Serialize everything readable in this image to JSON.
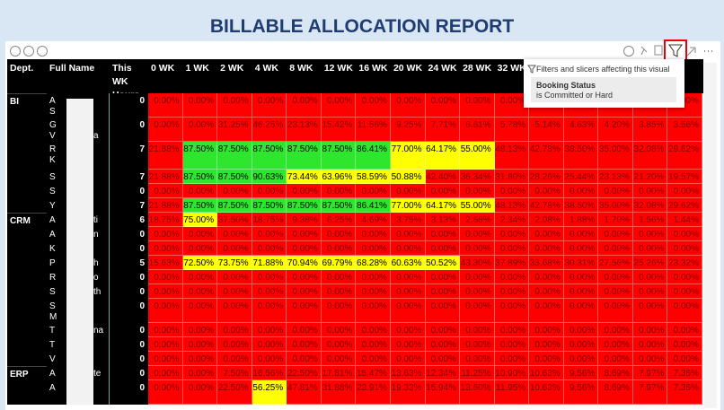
{
  "header": {
    "title": "BILLABLE ALLOCATION REPORT"
  },
  "table": {
    "columns": [
      "Dept.",
      "Full Name",
      "This WK Hours",
      "0 WK",
      "1 WK",
      "2 WK",
      "4 WK",
      "8 WK",
      "12 WK",
      "16 WK",
      "20 WK",
      "24 WK",
      "28 WK",
      "32 WK",
      null,
      null,
      null,
      null,
      null
    ],
    "colors": {
      "low": "#ff0000",
      "mid": "#ffff00",
      "high": "#2ee62e"
    },
    "rows": [
      {
        "dept": "BI",
        "name_lines": [
          "A",
          "S"
        ],
        "name_tail": null,
        "hours": 0,
        "cells": [
          "0.00%",
          "0.00%",
          "0.00%",
          "0.00%",
          "0.00%",
          "0.00%",
          "0.00%",
          "0.00%",
          "0.00%",
          "0.00%",
          "0.00%",
          "0.00%",
          "0.00%",
          "0.00%",
          "0.00%",
          "0.00%"
        ]
      },
      {
        "dept": null,
        "name_lines": [
          "G",
          "V"
        ],
        "name_tail": "a",
        "hours": 0,
        "cells": [
          "0.00%",
          "0.00%",
          "31.25%",
          "46.25%",
          "23.13%",
          "15.42%",
          "11.56%",
          "9.25%",
          "7.71%",
          "6.61%",
          "5.78%",
          "5.14%",
          "4.63%",
          "4.20%",
          "3.85%",
          "3.56%"
        ]
      },
      {
        "dept": null,
        "name_lines": [
          "R",
          "K"
        ],
        "name_tail": null,
        "hours": 7,
        "cells": [
          "21.88%",
          "87.50%",
          "87.50%",
          "87.50%",
          "87.50%",
          "87.50%",
          "86.41%",
          "77.00%",
          "64.17%",
          "55.00%",
          "48.13%",
          "42.78%",
          "38.50%",
          "35.00%",
          "32.08%",
          "29.62%"
        ]
      },
      {
        "dept": null,
        "name_lines": [
          "S"
        ],
        "name_tail": null,
        "hours": 7,
        "cells": [
          "21.88%",
          "87.50%",
          "87.50%",
          "90.63%",
          "73.44%",
          "63.96%",
          "58.59%",
          "50.88%",
          "42.40%",
          "36.34%",
          "31.80%",
          "28.26%",
          "25.44%",
          "23.13%",
          "21.20%",
          "19.57%"
        ]
      },
      {
        "dept": null,
        "name_lines": [
          "S"
        ],
        "name_tail": null,
        "hours": 0,
        "cells": [
          "0.00%",
          "0.00%",
          "0.00%",
          "0.00%",
          "0.00%",
          "0.00%",
          "0.00%",
          "0.00%",
          "0.00%",
          "0.00%",
          "0.00%",
          "0.00%",
          "0.00%",
          "0.00%",
          "0.00%",
          "0.00%"
        ]
      },
      {
        "dept": null,
        "name_lines": [
          "Y"
        ],
        "name_tail": null,
        "hours": 7,
        "cells": [
          "21.88%",
          "87.50%",
          "87.50%",
          "87.50%",
          "87.50%",
          "87.50%",
          "86.41%",
          "77.00%",
          "64.17%",
          "55.00%",
          "48.13%",
          "42.78%",
          "38.50%",
          "35.00%",
          "32.08%",
          "29.62%"
        ]
      },
      {
        "dept": "CRM",
        "name_lines": [
          "A"
        ],
        "name_tail": "ti",
        "hours": 6,
        "cells": [
          "18.75%",
          "75.00%",
          "37.50%",
          "18.75%",
          "9.38%",
          "6.25%",
          "4.69%",
          "3.75%",
          "3.13%",
          "2.68%",
          "2.34%",
          "2.08%",
          "1.88%",
          "1.70%",
          "1.56%",
          "1.44%"
        ]
      },
      {
        "dept": null,
        "name_lines": [
          "A"
        ],
        "name_tail": "n",
        "hours": 0,
        "cells": [
          "0.00%",
          "0.00%",
          "0.00%",
          "0.00%",
          "0.00%",
          "0.00%",
          "0.00%",
          "0.00%",
          "0.00%",
          "0.00%",
          "0.00%",
          "0.00%",
          "0.00%",
          "0.00%",
          "0.00%",
          "0.00%"
        ]
      },
      {
        "dept": null,
        "name_lines": [
          "K"
        ],
        "name_tail": null,
        "hours": 0,
        "cells": [
          "0.00%",
          "0.00%",
          "0.00%",
          "0.00%",
          "0.00%",
          "0.00%",
          "0.00%",
          "0.00%",
          "0.00%",
          "0.00%",
          "0.00%",
          "0.00%",
          "0.00%",
          "0.00%",
          "0.00%",
          "0.00%"
        ]
      },
      {
        "dept": null,
        "name_lines": [
          "P"
        ],
        "name_tail": "h",
        "hours": 5,
        "cells": [
          "15.63%",
          "72.50%",
          "73.75%",
          "71.88%",
          "70.94%",
          "69.79%",
          "68.28%",
          "60.63%",
          "50.52%",
          "43.30%",
          "37.89%",
          "33.68%",
          "30.31%",
          "27.56%",
          "25.26%",
          "23.32%"
        ]
      },
      {
        "dept": null,
        "name_lines": [
          "R"
        ],
        "name_tail": "o",
        "hours": 0,
        "cells": [
          "0.00%",
          "0.00%",
          "0.00%",
          "0.00%",
          "0.00%",
          "0.00%",
          "0.00%",
          "0.00%",
          "0.00%",
          "0.00%",
          "0.00%",
          "0.00%",
          "0.00%",
          "0.00%",
          "0.00%",
          "0.00%"
        ]
      },
      {
        "dept": null,
        "name_lines": [
          "S"
        ],
        "name_tail": "th",
        "hours": 0,
        "cells": [
          "0.00%",
          "0.00%",
          "0.00%",
          "0.00%",
          "0.00%",
          "0.00%",
          "0.00%",
          "0.00%",
          "0.00%",
          "0.00%",
          "0.00%",
          "0.00%",
          "0.00%",
          "0.00%",
          "0.00%",
          "0.00%"
        ]
      },
      {
        "dept": null,
        "name_lines": [
          "S",
          "M"
        ],
        "name_tail": null,
        "hours": 0,
        "cells": [
          "0.00%",
          "0.00%",
          "0.00%",
          "0.00%",
          "0.00%",
          "0.00%",
          "0.00%",
          "0.00%",
          "0.00%",
          "0.00%",
          "0.00%",
          "0.00%",
          "0.00%",
          "0.00%",
          "0.00%",
          "0.00%"
        ]
      },
      {
        "dept": null,
        "name_lines": [
          "T"
        ],
        "name_tail": "na",
        "hours": 0,
        "cells": [
          "0.00%",
          "0.00%",
          "0.00%",
          "0.00%",
          "0.00%",
          "0.00%",
          "0.00%",
          "0.00%",
          "0.00%",
          "0.00%",
          "0.00%",
          "0.00%",
          "0.00%",
          "0.00%",
          "0.00%",
          "0.00%"
        ]
      },
      {
        "dept": null,
        "name_lines": [
          "T"
        ],
        "name_tail": null,
        "hours": 0,
        "cells": [
          "0.00%",
          "0.00%",
          "0.00%",
          "0.00%",
          "0.00%",
          "0.00%",
          "0.00%",
          "0.00%",
          "0.00%",
          "0.00%",
          "0.00%",
          "0.00%",
          "0.00%",
          "0.00%",
          "0.00%",
          "0.00%"
        ]
      },
      {
        "dept": null,
        "name_lines": [
          "V"
        ],
        "name_tail": null,
        "hours": 0,
        "cells": [
          "0.00%",
          "0.00%",
          "0.00%",
          "0.00%",
          "0.00%",
          "0.00%",
          "0.00%",
          "0.00%",
          "0.00%",
          "0.00%",
          "0.00%",
          "0.00%",
          "0.00%",
          "0.00%",
          "0.00%",
          "0.00%"
        ]
      },
      {
        "dept": "ERP",
        "name_lines": [
          "A"
        ],
        "name_tail": "te",
        "hours": 0,
        "cells": [
          "0.00%",
          "0.00%",
          "7.50%",
          "16.56%",
          "22.50%",
          "17.81%",
          "15.47%",
          "13.63%",
          "12.34%",
          "11.25%",
          "10.90%",
          "10.63%",
          "9.56%",
          "8.69%",
          "7.97%",
          "7.36%"
        ]
      },
      {
        "dept": null,
        "name_lines": [
          "A"
        ],
        "name_tail": null,
        "hours": 0,
        "cells": [
          "0.00%",
          "0.00%",
          "22.50%",
          "56.25%",
          "47.81%",
          "31.88%",
          "23.91%",
          "19.33%",
          "15.94%",
          "13.60%",
          "11.95%",
          "10.63%",
          "9.56%",
          "8.69%",
          "7.97%",
          "7.36%"
        ]
      }
    ]
  },
  "filter_popup": {
    "heading": "Filters and slicers affecting this visual",
    "filter_name": "Booking Status",
    "filter_value": "is Committed or Hard"
  }
}
